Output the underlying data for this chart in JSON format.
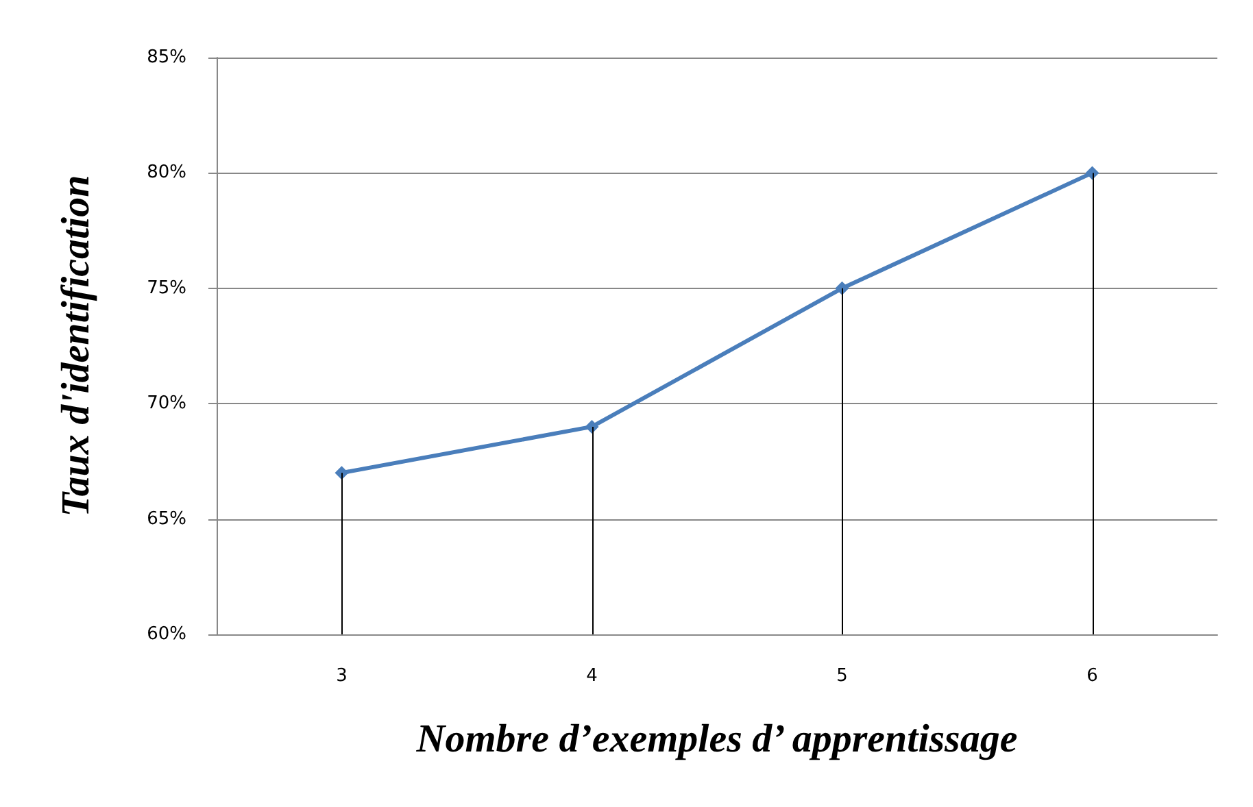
{
  "chart_data": {
    "type": "line",
    "xlabel": "Nombre d’exemples d’ apprentissage",
    "ylabel": "Taux d'identification",
    "categories": [
      "3",
      "4",
      "5",
      "6"
    ],
    "series": [
      {
        "color": "#4a7ebb",
        "values": [
          67,
          69,
          75,
          80
        ],
        "errors": [
          [
            60,
            67
          ],
          [
            60,
            69
          ],
          [
            60,
            75
          ],
          [
            60,
            80
          ]
        ]
      }
    ],
    "ylim": [
      60,
      85
    ],
    "yticks": [
      {
        "value": 60,
        "label": "60%"
      },
      {
        "value": 65,
        "label": "65%"
      },
      {
        "value": 70,
        "label": "70%"
      },
      {
        "value": 75,
        "label": "75%"
      },
      {
        "value": 80,
        "label": "80%"
      },
      {
        "value": 85,
        "label": "85%"
      }
    ],
    "grid": "y",
    "marker": "diamond",
    "line_style": "solid"
  }
}
